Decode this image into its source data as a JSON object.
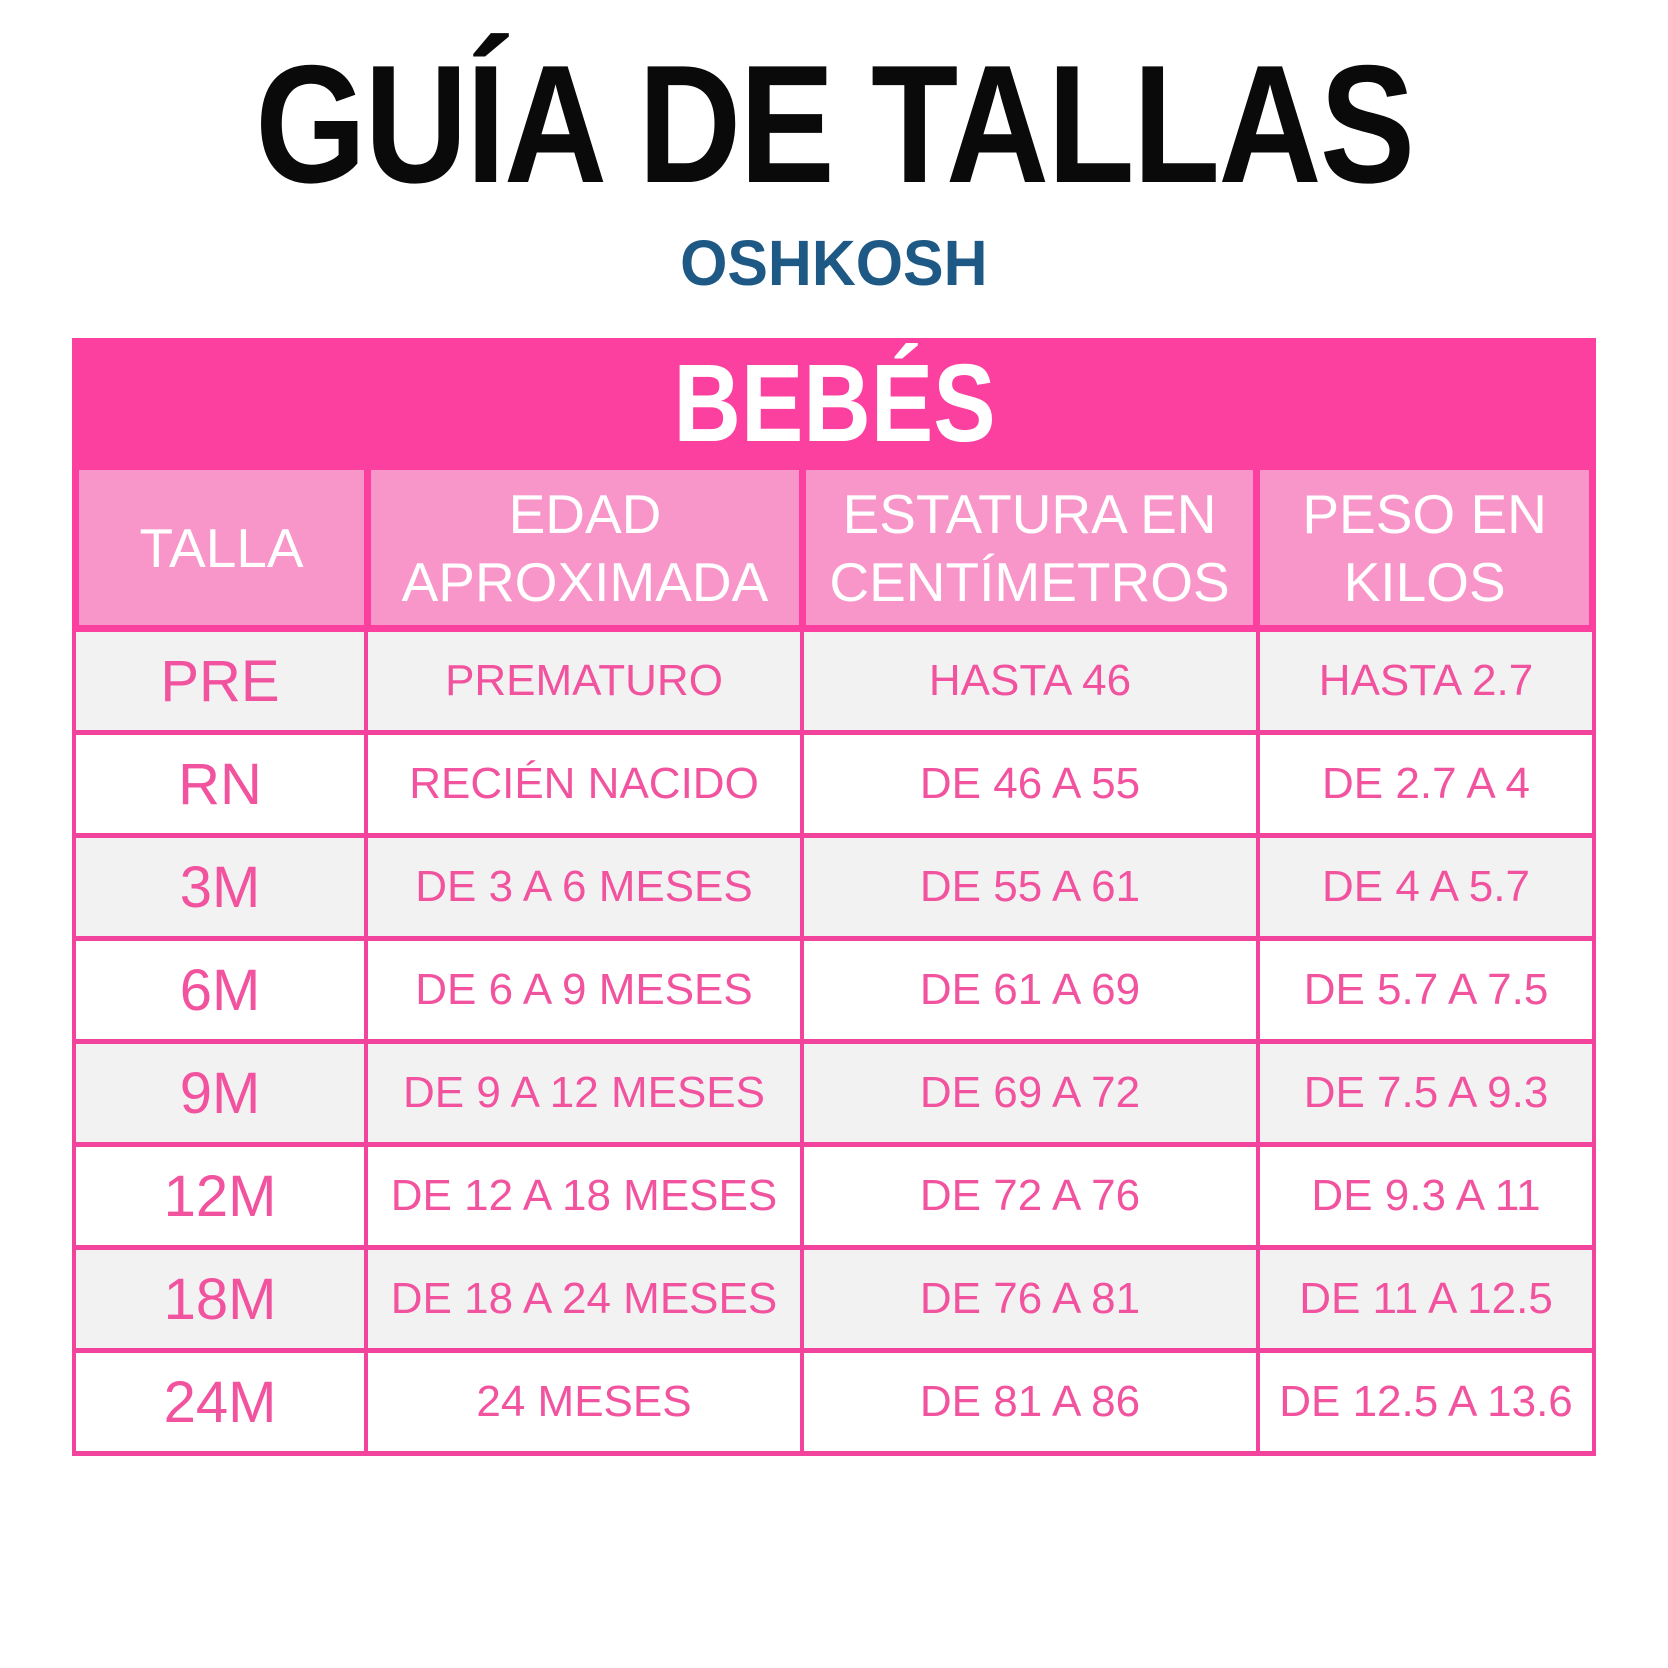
{
  "page": {
    "title": "GUÍA DE TALLAS",
    "brand": "OSHKOSH",
    "section": "BEBÉS"
  },
  "colors": {
    "banner_pink": "#fc40a0",
    "header_pink": "#f996c9",
    "border_pink": "#f2439d",
    "text_pink": "#f1539f",
    "row_gray": "#f3f2f3",
    "row_white": "#ffffff",
    "brand_blue": "#1d5984",
    "title_black": "#0a0a0a"
  },
  "table": {
    "columns": [
      "TALLA",
      "EDAD APROXIMADA",
      "ESTATURA EN CENTÍMETROS",
      "PESO EN KILOS"
    ],
    "rows": [
      {
        "talla": "PRE",
        "edad": "PREMATURO",
        "estatura": "HASTA 46",
        "peso": "HASTA 2.7"
      },
      {
        "talla": "RN",
        "edad": "RECIÉN NACIDO",
        "estatura": "DE 46 A 55",
        "peso": "DE 2.7 A 4"
      },
      {
        "talla": "3M",
        "edad": "DE 3 A 6 MESES",
        "estatura": "DE 55 A 61",
        "peso": "DE 4 A 5.7"
      },
      {
        "talla": "6M",
        "edad": "DE 6 A 9 MESES",
        "estatura": "DE 61 A 69",
        "peso": "DE 5.7 A 7.5"
      },
      {
        "talla": "9M",
        "edad": "DE 9 A 12 MESES",
        "estatura": "DE 69 A 72",
        "peso": "DE 7.5 A 9.3"
      },
      {
        "talla": "12M",
        "edad": "DE 12 A 18 MESES",
        "estatura": "DE 72 A 76",
        "peso": "DE 9.3 A 11"
      },
      {
        "talla": "18M",
        "edad": "DE 18 A 24 MESES",
        "estatura": "DE 76 A 81",
        "peso": "DE 11 A 12.5"
      },
      {
        "talla": "24M",
        "edad": "24 MESES",
        "estatura": "DE 81 A 86",
        "peso": "DE 12.5 A 13.6"
      }
    ]
  }
}
